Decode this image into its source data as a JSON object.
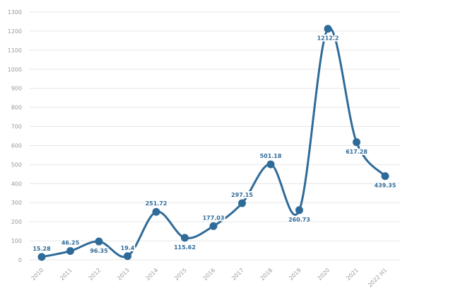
{
  "chart_data": {
    "type": "line",
    "title": "",
    "xlabel": "",
    "ylabel": "",
    "categories": [
      "2010",
      "2011",
      "2012",
      "2013",
      "2014",
      "2015",
      "2016",
      "2017",
      "2018",
      "2019",
      "2020",
      "2021",
      "2022 H1"
    ],
    "series": [
      {
        "values": [
          15.28,
          46.25,
          96.35,
          19.4,
          251.72,
          115.62,
          177.03,
          297.15,
          501.18,
          260.73,
          1212.2,
          617.28,
          439.35
        ],
        "color": "#2f6b99"
      }
    ],
    "data_labels": [
      "15.28",
      "46.25",
      "96.35",
      "19.4",
      "251.72",
      "115.62",
      "177.03",
      "297.15",
      "501.18",
      "260.73",
      "1212.2",
      "617.28",
      "439.35"
    ],
    "y_ticks": [
      0,
      100,
      200,
      300,
      400,
      500,
      600,
      700,
      800,
      900,
      1000,
      1100,
      1200,
      1300
    ],
    "ylim": [
      0,
      1300
    ],
    "grid": true,
    "legend": false,
    "colors": {
      "line": "#2f6b99",
      "grid": "#e6e6e6",
      "axis_text": "#9a9a9a",
      "label": "#2f6b99"
    }
  }
}
